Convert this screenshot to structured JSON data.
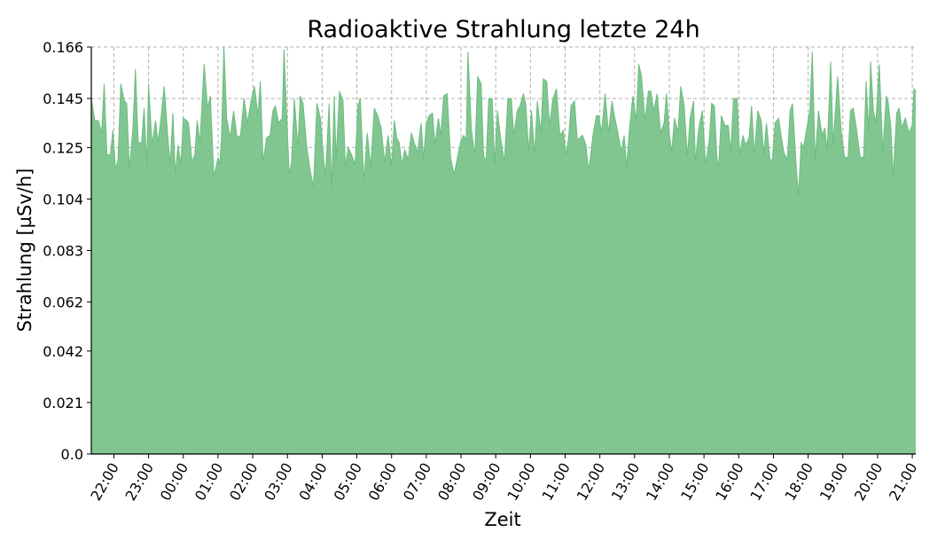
{
  "chart_data": {
    "type": "area",
    "title": "Radioaktive Strahlung letzte 24h",
    "xlabel": "Zeit",
    "ylabel": "Strahlung [µSv/h]",
    "yticks": [
      "0.0",
      "0.021",
      "0.042",
      "0.062",
      "0.083",
      "0.104",
      "0.125",
      "0.145",
      "0.166"
    ],
    "ytick_values": [
      0.0,
      0.021,
      0.042,
      0.062,
      0.083,
      0.104,
      0.125,
      0.145,
      0.166
    ],
    "ylim": [
      0,
      0.166
    ],
    "xticks": [
      "22:00",
      "23:00",
      "00:00",
      "01:00",
      "02:00",
      "03:00",
      "04:00",
      "05:00",
      "06:00",
      "07:00",
      "08:00",
      "09:00",
      "10:00",
      "11:00",
      "12:00",
      "13:00",
      "14:00",
      "15:00",
      "16:00",
      "17:00",
      "18:00",
      "19:00",
      "20:00",
      "21:00"
    ],
    "xtick_hours": [
      22,
      23,
      24,
      25,
      26,
      27,
      28,
      29,
      30,
      31,
      32,
      33,
      34,
      35,
      36,
      37,
      38,
      39,
      40,
      41,
      42,
      43,
      44,
      45
    ],
    "xlim": [
      21.35,
      45.1
    ],
    "grid": true,
    "fill_color": "#81c691",
    "line_color": "#6bbd7f",
    "series": [
      {
        "values": [
          [
            21.35,
            0.145
          ],
          [
            21.45,
            0.136
          ],
          [
            21.55,
            0.136
          ],
          [
            21.65,
            0.131
          ],
          [
            21.72,
            0.151
          ],
          [
            21.8,
            0.122
          ],
          [
            21.9,
            0.122
          ],
          [
            21.97,
            0.132
          ],
          [
            22.05,
            0.116
          ],
          [
            22.12,
            0.12
          ],
          [
            22.2,
            0.151
          ],
          [
            22.3,
            0.144
          ],
          [
            22.37,
            0.143
          ],
          [
            22.45,
            0.116
          ],
          [
            22.55,
            0.133
          ],
          [
            22.62,
            0.157
          ],
          [
            22.7,
            0.127
          ],
          [
            22.8,
            0.127
          ],
          [
            22.87,
            0.141
          ],
          [
            22.95,
            0.118
          ],
          [
            23.0,
            0.151
          ],
          [
            23.1,
            0.126
          ],
          [
            23.2,
            0.136
          ],
          [
            23.27,
            0.127
          ],
          [
            23.35,
            0.136
          ],
          [
            23.45,
            0.15
          ],
          [
            23.55,
            0.13
          ],
          [
            23.62,
            0.118
          ],
          [
            23.7,
            0.139
          ],
          [
            23.77,
            0.114
          ],
          [
            23.85,
            0.126
          ],
          [
            23.93,
            0.118
          ],
          [
            24.0,
            0.137
          ],
          [
            24.1,
            0.136
          ],
          [
            24.15,
            0.135
          ],
          [
            24.25,
            0.119
          ],
          [
            24.33,
            0.122
          ],
          [
            24.4,
            0.136
          ],
          [
            24.48,
            0.127
          ],
          [
            24.6,
            0.159
          ],
          [
            24.7,
            0.141
          ],
          [
            24.78,
            0.146
          ],
          [
            24.88,
            0.113
          ],
          [
            25.0,
            0.121
          ],
          [
            25.05,
            0.118
          ],
          [
            25.1,
            0.129
          ],
          [
            25.17,
            0.166
          ],
          [
            25.25,
            0.137
          ],
          [
            25.35,
            0.129
          ],
          [
            25.45,
            0.14
          ],
          [
            25.55,
            0.129
          ],
          [
            25.65,
            0.13
          ],
          [
            25.75,
            0.145
          ],
          [
            25.85,
            0.135
          ],
          [
            25.95,
            0.144
          ],
          [
            26.05,
            0.15
          ],
          [
            26.15,
            0.138
          ],
          [
            26.22,
            0.152
          ],
          [
            26.3,
            0.119
          ],
          [
            26.4,
            0.129
          ],
          [
            26.5,
            0.13
          ],
          [
            26.58,
            0.14
          ],
          [
            26.65,
            0.142
          ],
          [
            26.75,
            0.135
          ],
          [
            26.85,
            0.137
          ],
          [
            26.9,
            0.165
          ],
          [
            27.0,
            0.131
          ],
          [
            27.05,
            0.114
          ],
          [
            27.12,
            0.119
          ],
          [
            27.2,
            0.145
          ],
          [
            27.3,
            0.125
          ],
          [
            27.37,
            0.146
          ],
          [
            27.45,
            0.143
          ],
          [
            27.55,
            0.126
          ],
          [
            27.65,
            0.116
          ],
          [
            27.75,
            0.109
          ],
          [
            27.85,
            0.143
          ],
          [
            27.95,
            0.137
          ],
          [
            28.05,
            0.119
          ],
          [
            28.1,
            0.114
          ],
          [
            28.2,
            0.143
          ],
          [
            28.27,
            0.108
          ],
          [
            28.35,
            0.146
          ],
          [
            28.4,
            0.12
          ],
          [
            28.5,
            0.148
          ],
          [
            28.6,
            0.144
          ],
          [
            28.67,
            0.117
          ],
          [
            28.75,
            0.125
          ],
          [
            28.85,
            0.122
          ],
          [
            28.95,
            0.118
          ],
          [
            29.03,
            0.142
          ],
          [
            29.1,
            0.145
          ],
          [
            29.2,
            0.111
          ],
          [
            29.3,
            0.131
          ],
          [
            29.4,
            0.117
          ],
          [
            29.5,
            0.141
          ],
          [
            29.6,
            0.138
          ],
          [
            29.7,
            0.133
          ],
          [
            29.8,
            0.119
          ],
          [
            29.9,
            0.13
          ],
          [
            30.0,
            0.117
          ],
          [
            30.08,
            0.136
          ],
          [
            30.15,
            0.129
          ],
          [
            30.22,
            0.127
          ],
          [
            30.3,
            0.118
          ],
          [
            30.38,
            0.124
          ],
          [
            30.48,
            0.12
          ],
          [
            30.57,
            0.131
          ],
          [
            30.65,
            0.127
          ],
          [
            30.75,
            0.123
          ],
          [
            30.85,
            0.135
          ],
          [
            30.92,
            0.12
          ],
          [
            31.0,
            0.135
          ],
          [
            31.08,
            0.138
          ],
          [
            31.18,
            0.139
          ],
          [
            31.25,
            0.126
          ],
          [
            31.35,
            0.137
          ],
          [
            31.42,
            0.13
          ],
          [
            31.5,
            0.146
          ],
          [
            31.6,
            0.147
          ],
          [
            31.7,
            0.121
          ],
          [
            31.8,
            0.114
          ],
          [
            31.9,
            0.121
          ],
          [
            32.0,
            0.128
          ],
          [
            32.08,
            0.13
          ],
          [
            32.15,
            0.128
          ],
          [
            32.2,
            0.164
          ],
          [
            32.3,
            0.132
          ],
          [
            32.4,
            0.122
          ],
          [
            32.48,
            0.154
          ],
          [
            32.58,
            0.151
          ],
          [
            32.65,
            0.122
          ],
          [
            32.72,
            0.119
          ],
          [
            32.8,
            0.145
          ],
          [
            32.9,
            0.145
          ],
          [
            32.97,
            0.118
          ],
          [
            33.05,
            0.14
          ],
          [
            33.15,
            0.128
          ],
          [
            33.25,
            0.119
          ],
          [
            33.35,
            0.145
          ],
          [
            33.45,
            0.145
          ],
          [
            33.52,
            0.13
          ],
          [
            33.62,
            0.14
          ],
          [
            33.7,
            0.142
          ],
          [
            33.8,
            0.147
          ],
          [
            33.87,
            0.142
          ],
          [
            33.95,
            0.123
          ],
          [
            34.03,
            0.14
          ],
          [
            34.12,
            0.122
          ],
          [
            34.2,
            0.144
          ],
          [
            34.3,
            0.131
          ],
          [
            34.37,
            0.153
          ],
          [
            34.47,
            0.152
          ],
          [
            34.55,
            0.134
          ],
          [
            34.65,
            0.145
          ],
          [
            34.75,
            0.149
          ],
          [
            34.85,
            0.13
          ],
          [
            34.95,
            0.132
          ],
          [
            35.02,
            0.122
          ],
          [
            35.1,
            0.129
          ],
          [
            35.17,
            0.142
          ],
          [
            35.27,
            0.144
          ],
          [
            35.35,
            0.128
          ],
          [
            35.42,
            0.129
          ],
          [
            35.5,
            0.13
          ],
          [
            35.6,
            0.126
          ],
          [
            35.67,
            0.116
          ],
          [
            35.72,
            0.12
          ],
          [
            35.8,
            0.13
          ],
          [
            35.9,
            0.138
          ],
          [
            35.97,
            0.138
          ],
          [
            36.05,
            0.131
          ],
          [
            36.15,
            0.147
          ],
          [
            36.25,
            0.131
          ],
          [
            36.35,
            0.144
          ],
          [
            36.42,
            0.138
          ],
          [
            36.52,
            0.131
          ],
          [
            36.62,
            0.123
          ],
          [
            36.7,
            0.13
          ],
          [
            36.77,
            0.117
          ],
          [
            36.85,
            0.132
          ],
          [
            36.95,
            0.146
          ],
          [
            37.05,
            0.136
          ],
          [
            37.12,
            0.159
          ],
          [
            37.2,
            0.154
          ],
          [
            37.3,
            0.136
          ],
          [
            37.4,
            0.148
          ],
          [
            37.47,
            0.148
          ],
          [
            37.55,
            0.14
          ],
          [
            37.65,
            0.147
          ],
          [
            37.75,
            0.131
          ],
          [
            37.85,
            0.135
          ],
          [
            37.92,
            0.147
          ],
          [
            38.0,
            0.131
          ],
          [
            38.07,
            0.123
          ],
          [
            38.15,
            0.137
          ],
          [
            38.25,
            0.131
          ],
          [
            38.33,
            0.15
          ],
          [
            38.43,
            0.142
          ],
          [
            38.52,
            0.121
          ],
          [
            38.6,
            0.137
          ],
          [
            38.7,
            0.144
          ],
          [
            38.75,
            0.119
          ],
          [
            38.85,
            0.133
          ],
          [
            38.95,
            0.14
          ],
          [
            39.05,
            0.118
          ],
          [
            39.15,
            0.128
          ],
          [
            39.22,
            0.143
          ],
          [
            39.3,
            0.142
          ],
          [
            39.37,
            0.121
          ],
          [
            39.42,
            0.117
          ],
          [
            39.5,
            0.138
          ],
          [
            39.6,
            0.134
          ],
          [
            39.7,
            0.134
          ],
          [
            39.77,
            0.123
          ],
          [
            39.85,
            0.145
          ],
          [
            39.95,
            0.145
          ],
          [
            40.03,
            0.122
          ],
          [
            40.12,
            0.13
          ],
          [
            40.2,
            0.126
          ],
          [
            40.3,
            0.129
          ],
          [
            40.37,
            0.142
          ],
          [
            40.45,
            0.122
          ],
          [
            40.55,
            0.14
          ],
          [
            40.65,
            0.136
          ],
          [
            40.72,
            0.122
          ],
          [
            40.8,
            0.135
          ],
          [
            40.9,
            0.12
          ],
          [
            40.97,
            0.12
          ],
          [
            41.05,
            0.135
          ],
          [
            41.15,
            0.137
          ],
          [
            41.22,
            0.13
          ],
          [
            41.3,
            0.123
          ],
          [
            41.4,
            0.12
          ],
          [
            41.48,
            0.14
          ],
          [
            41.55,
            0.143
          ],
          [
            41.65,
            0.119
          ],
          [
            41.72,
            0.105
          ],
          [
            41.8,
            0.127
          ],
          [
            41.87,
            0.125
          ],
          [
            41.95,
            0.132
          ],
          [
            42.05,
            0.14
          ],
          [
            42.12,
            0.164
          ],
          [
            42.2,
            0.12
          ],
          [
            42.3,
            0.14
          ],
          [
            42.4,
            0.13
          ],
          [
            42.48,
            0.133
          ],
          [
            42.55,
            0.124
          ],
          [
            42.65,
            0.16
          ],
          [
            42.72,
            0.126
          ],
          [
            42.85,
            0.154
          ],
          [
            42.95,
            0.132
          ],
          [
            43.05,
            0.121
          ],
          [
            43.15,
            0.121
          ],
          [
            43.22,
            0.14
          ],
          [
            43.3,
            0.141
          ],
          [
            43.4,
            0.132
          ],
          [
            43.5,
            0.121
          ],
          [
            43.6,
            0.121
          ],
          [
            43.67,
            0.152
          ],
          [
            43.75,
            0.131
          ],
          [
            43.8,
            0.16
          ],
          [
            43.88,
            0.14
          ],
          [
            43.95,
            0.135
          ],
          [
            44.05,
            0.159
          ],
          [
            44.15,
            0.123
          ],
          [
            44.25,
            0.146
          ],
          [
            44.3,
            0.144
          ],
          [
            44.38,
            0.134
          ],
          [
            44.45,
            0.113
          ],
          [
            44.55,
            0.139
          ],
          [
            44.62,
            0.141
          ],
          [
            44.7,
            0.133
          ],
          [
            44.8,
            0.137
          ],
          [
            44.9,
            0.131
          ],
          [
            45.0,
            0.134
          ],
          [
            45.05,
            0.149
          ],
          [
            45.1,
            0.148
          ]
        ]
      }
    ]
  }
}
